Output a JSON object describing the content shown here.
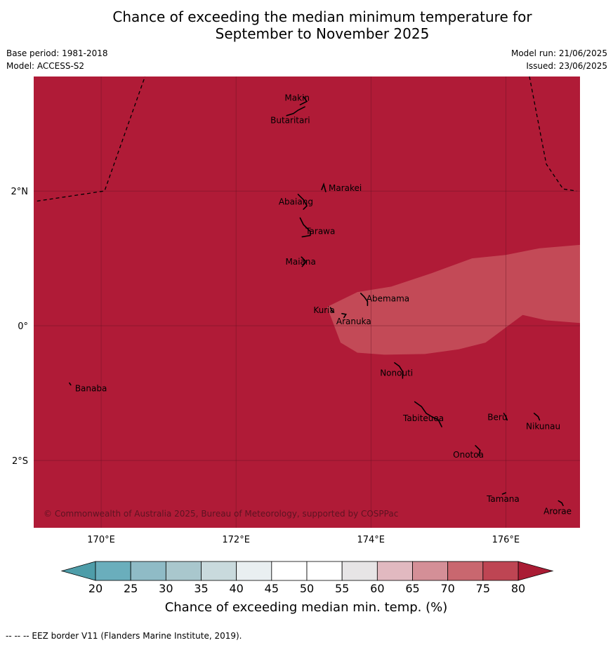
{
  "title": {
    "line1": "Chance of exceeding the median minimum temperature for",
    "line2": "September to November 2025"
  },
  "meta": {
    "base_period": "Base period: 1981-2018",
    "model": "Model: ACCESS-S2",
    "model_run": "Model run: 21/06/2025",
    "issued": "Issued: 23/06/2025"
  },
  "map": {
    "lon_range": [
      169.0,
      177.1
    ],
    "lat_range": [
      -3.0,
      3.7
    ],
    "fill_color": "#b01b37",
    "patch_color": "#c34a57",
    "patch_category": "75-80",
    "background_category": ">80",
    "copyright": "© Commonwealth of Australia 2025, Bureau of Meteorology, supported by COSPPac",
    "x_ticks": [
      {
        "lon": 170,
        "label": "170°E"
      },
      {
        "lon": 172,
        "label": "172°E"
      },
      {
        "lon": 174,
        "label": "174°E"
      },
      {
        "lon": 176,
        "label": "176°E"
      }
    ],
    "y_ticks": [
      {
        "lat": 2,
        "label": "2°N"
      },
      {
        "lat": 0,
        "label": "0°"
      },
      {
        "lat": -2,
        "label": "2°S"
      }
    ],
    "islands": [
      {
        "name": "Makin",
        "lon": 173.0,
        "lat": 3.35
      },
      {
        "name": "Butaritari",
        "lon": 172.95,
        "lat": 3.1
      },
      {
        "name": "Marakei",
        "lon": 173.3,
        "lat": 2.0
      },
      {
        "name": "Abaiang",
        "lon": 172.95,
        "lat": 1.8
      },
      {
        "name": "Tarawa",
        "lon": 173.0,
        "lat": 1.4
      },
      {
        "name": "Maiana",
        "lon": 173.0,
        "lat": 0.95
      },
      {
        "name": "Abemama",
        "lon": 173.85,
        "lat": 0.4
      },
      {
        "name": "Kuria",
        "lon": 173.4,
        "lat": 0.23
      },
      {
        "name": "Aranuka",
        "lon": 173.6,
        "lat": 0.17
      },
      {
        "name": "Nonouti",
        "lon": 174.4,
        "lat": -0.65
      },
      {
        "name": "Banaba",
        "lon": 169.55,
        "lat": -0.88
      },
      {
        "name": "Tabiteuea",
        "lon": 174.8,
        "lat": -1.3
      },
      {
        "name": "Beru",
        "lon": 176.0,
        "lat": -1.33
      },
      {
        "name": "Nikunau",
        "lon": 176.45,
        "lat": -1.35
      },
      {
        "name": "Onotoa",
        "lon": 175.57,
        "lat": -1.82
      },
      {
        "name": "Tamana",
        "lon": 175.98,
        "lat": -2.5
      },
      {
        "name": "Arorae",
        "lon": 176.82,
        "lat": -2.64
      }
    ]
  },
  "colorbar": {
    "label": "Chance of exceeding median min. temp. (%)",
    "ticks": [
      20,
      25,
      30,
      35,
      40,
      45,
      50,
      55,
      60,
      65,
      70,
      75,
      80
    ],
    "colors": [
      "#6aaebc",
      "#8fbbc6",
      "#a9c7cd",
      "#c9dadd",
      "#e9eff1",
      "#ffffff",
      "#ffffff",
      "#e7e5e6",
      "#e1b9c0",
      "#d48f97",
      "#c9676f",
      "#be4553"
    ],
    "under_color": "#4e9da9",
    "over_color": "#aa1c34"
  },
  "footnote": "--  --  -- EEZ border V11 (Flanders Marine Institute, 2019)."
}
